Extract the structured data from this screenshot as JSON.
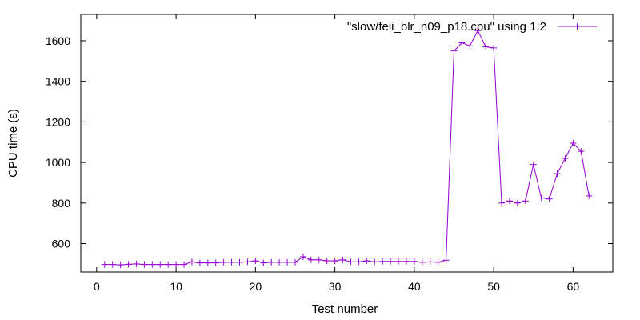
{
  "chart_data": {
    "type": "line",
    "xlabel": "Test number",
    "ylabel": "CPU time (s)",
    "xlim": [
      -2,
      65
    ],
    "ylim": [
      460,
      1730
    ],
    "xticks": [
      0,
      10,
      20,
      30,
      40,
      50,
      60
    ],
    "yticks": [
      600,
      800,
      1000,
      1200,
      1400,
      1600
    ],
    "grid": false,
    "legend_position": "top-right",
    "series": [
      {
        "name": "\"slow/feii_blr_n09_p18.cpu\" using 1:2",
        "color": "#9400d3",
        "marker": "plus",
        "x": [
          1,
          2,
          3,
          4,
          5,
          6,
          7,
          8,
          9,
          10,
          11,
          12,
          13,
          14,
          15,
          16,
          17,
          18,
          19,
          20,
          21,
          22,
          23,
          24,
          25,
          26,
          27,
          28,
          29,
          30,
          31,
          32,
          33,
          34,
          35,
          36,
          37,
          38,
          39,
          40,
          41,
          42,
          43,
          44,
          45,
          46,
          47,
          48,
          49,
          50,
          51,
          52,
          53,
          54,
          55,
          56,
          57,
          58,
          59,
          60,
          61,
          62
        ],
        "values": [
          497,
          497,
          495,
          498,
          500,
          497,
          497,
          497,
          497,
          497,
          497,
          510,
          505,
          505,
          505,
          508,
          508,
          508,
          510,
          515,
          505,
          508,
          508,
          508,
          508,
          535,
          520,
          520,
          515,
          515,
          520,
          510,
          510,
          515,
          510,
          512,
          512,
          512,
          512,
          512,
          508,
          510,
          508,
          518,
          1550,
          1590,
          1575,
          1650,
          1570,
          1565,
          800,
          810,
          800,
          810,
          990,
          825,
          820,
          945,
          1020,
          1095,
          1055,
          835
        ]
      }
    ]
  }
}
